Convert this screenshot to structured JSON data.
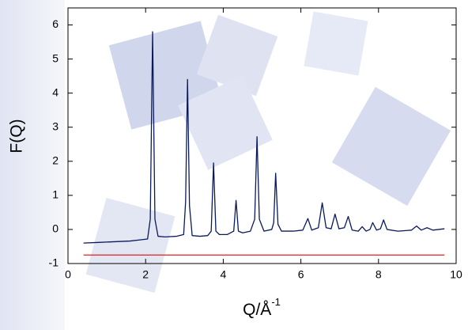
{
  "chart_data": {
    "type": "line",
    "ylabel": "F(Q)",
    "xlabel": "Q/Å",
    "xlabel_superscript": "-1",
    "xlim": [
      0,
      10
    ],
    "xticks": [
      0,
      2,
      4,
      6,
      8,
      10
    ],
    "ylim": [
      -1,
      6.5
    ],
    "yticks": [
      -1,
      0,
      1,
      2,
      3,
      4,
      5,
      6
    ],
    "series": [
      {
        "color": "#0a1a5c",
        "x": [
          0.4,
          0.8,
          1.2,
          1.6,
          1.9,
          2.05,
          2.12,
          2.18,
          2.24,
          2.32,
          2.5,
          2.8,
          2.98,
          3.03,
          3.08,
          3.13,
          3.2,
          3.4,
          3.6,
          3.69,
          3.75,
          3.81,
          3.9,
          4.1,
          4.27,
          4.33,
          4.39,
          4.5,
          4.7,
          4.81,
          4.87,
          4.93,
          5.05,
          5.25,
          5.3,
          5.35,
          5.41,
          5.5,
          5.8,
          6.05,
          6.18,
          6.28,
          6.45,
          6.55,
          6.65,
          6.78,
          6.88,
          6.98,
          7.12,
          7.22,
          7.32,
          7.48,
          7.58,
          7.68,
          7.78,
          7.85,
          7.95,
          8.05,
          8.13,
          8.22,
          8.5,
          8.85,
          8.98,
          9.1,
          9.25,
          9.4,
          9.7
        ],
        "values": [
          -0.4,
          -0.38,
          -0.36,
          -0.34,
          -0.3,
          -0.28,
          0.3,
          5.8,
          0.3,
          -0.2,
          -0.22,
          -0.2,
          -0.15,
          0.8,
          4.4,
          0.7,
          -0.18,
          -0.2,
          -0.18,
          -0.05,
          1.95,
          -0.05,
          -0.15,
          -0.15,
          -0.05,
          0.85,
          -0.05,
          -0.1,
          -0.05,
          0.3,
          2.72,
          0.3,
          -0.05,
          0,
          0.2,
          1.65,
          0.15,
          -0.05,
          -0.05,
          -0.02,
          0.32,
          -0.02,
          0.05,
          0.78,
          0.05,
          0.02,
          0.45,
          0.02,
          0.05,
          0.38,
          -0.02,
          -0.05,
          0.08,
          -0.05,
          0,
          0.2,
          -0.02,
          0.02,
          0.28,
          0,
          -0.05,
          -0.02,
          0.1,
          -0.02,
          0.05,
          -0.02,
          0.02
        ]
      },
      {
        "color": "#e0201e",
        "x": [
          0.4,
          9.7
        ],
        "values": [
          -0.75,
          -0.75
        ]
      }
    ]
  }
}
